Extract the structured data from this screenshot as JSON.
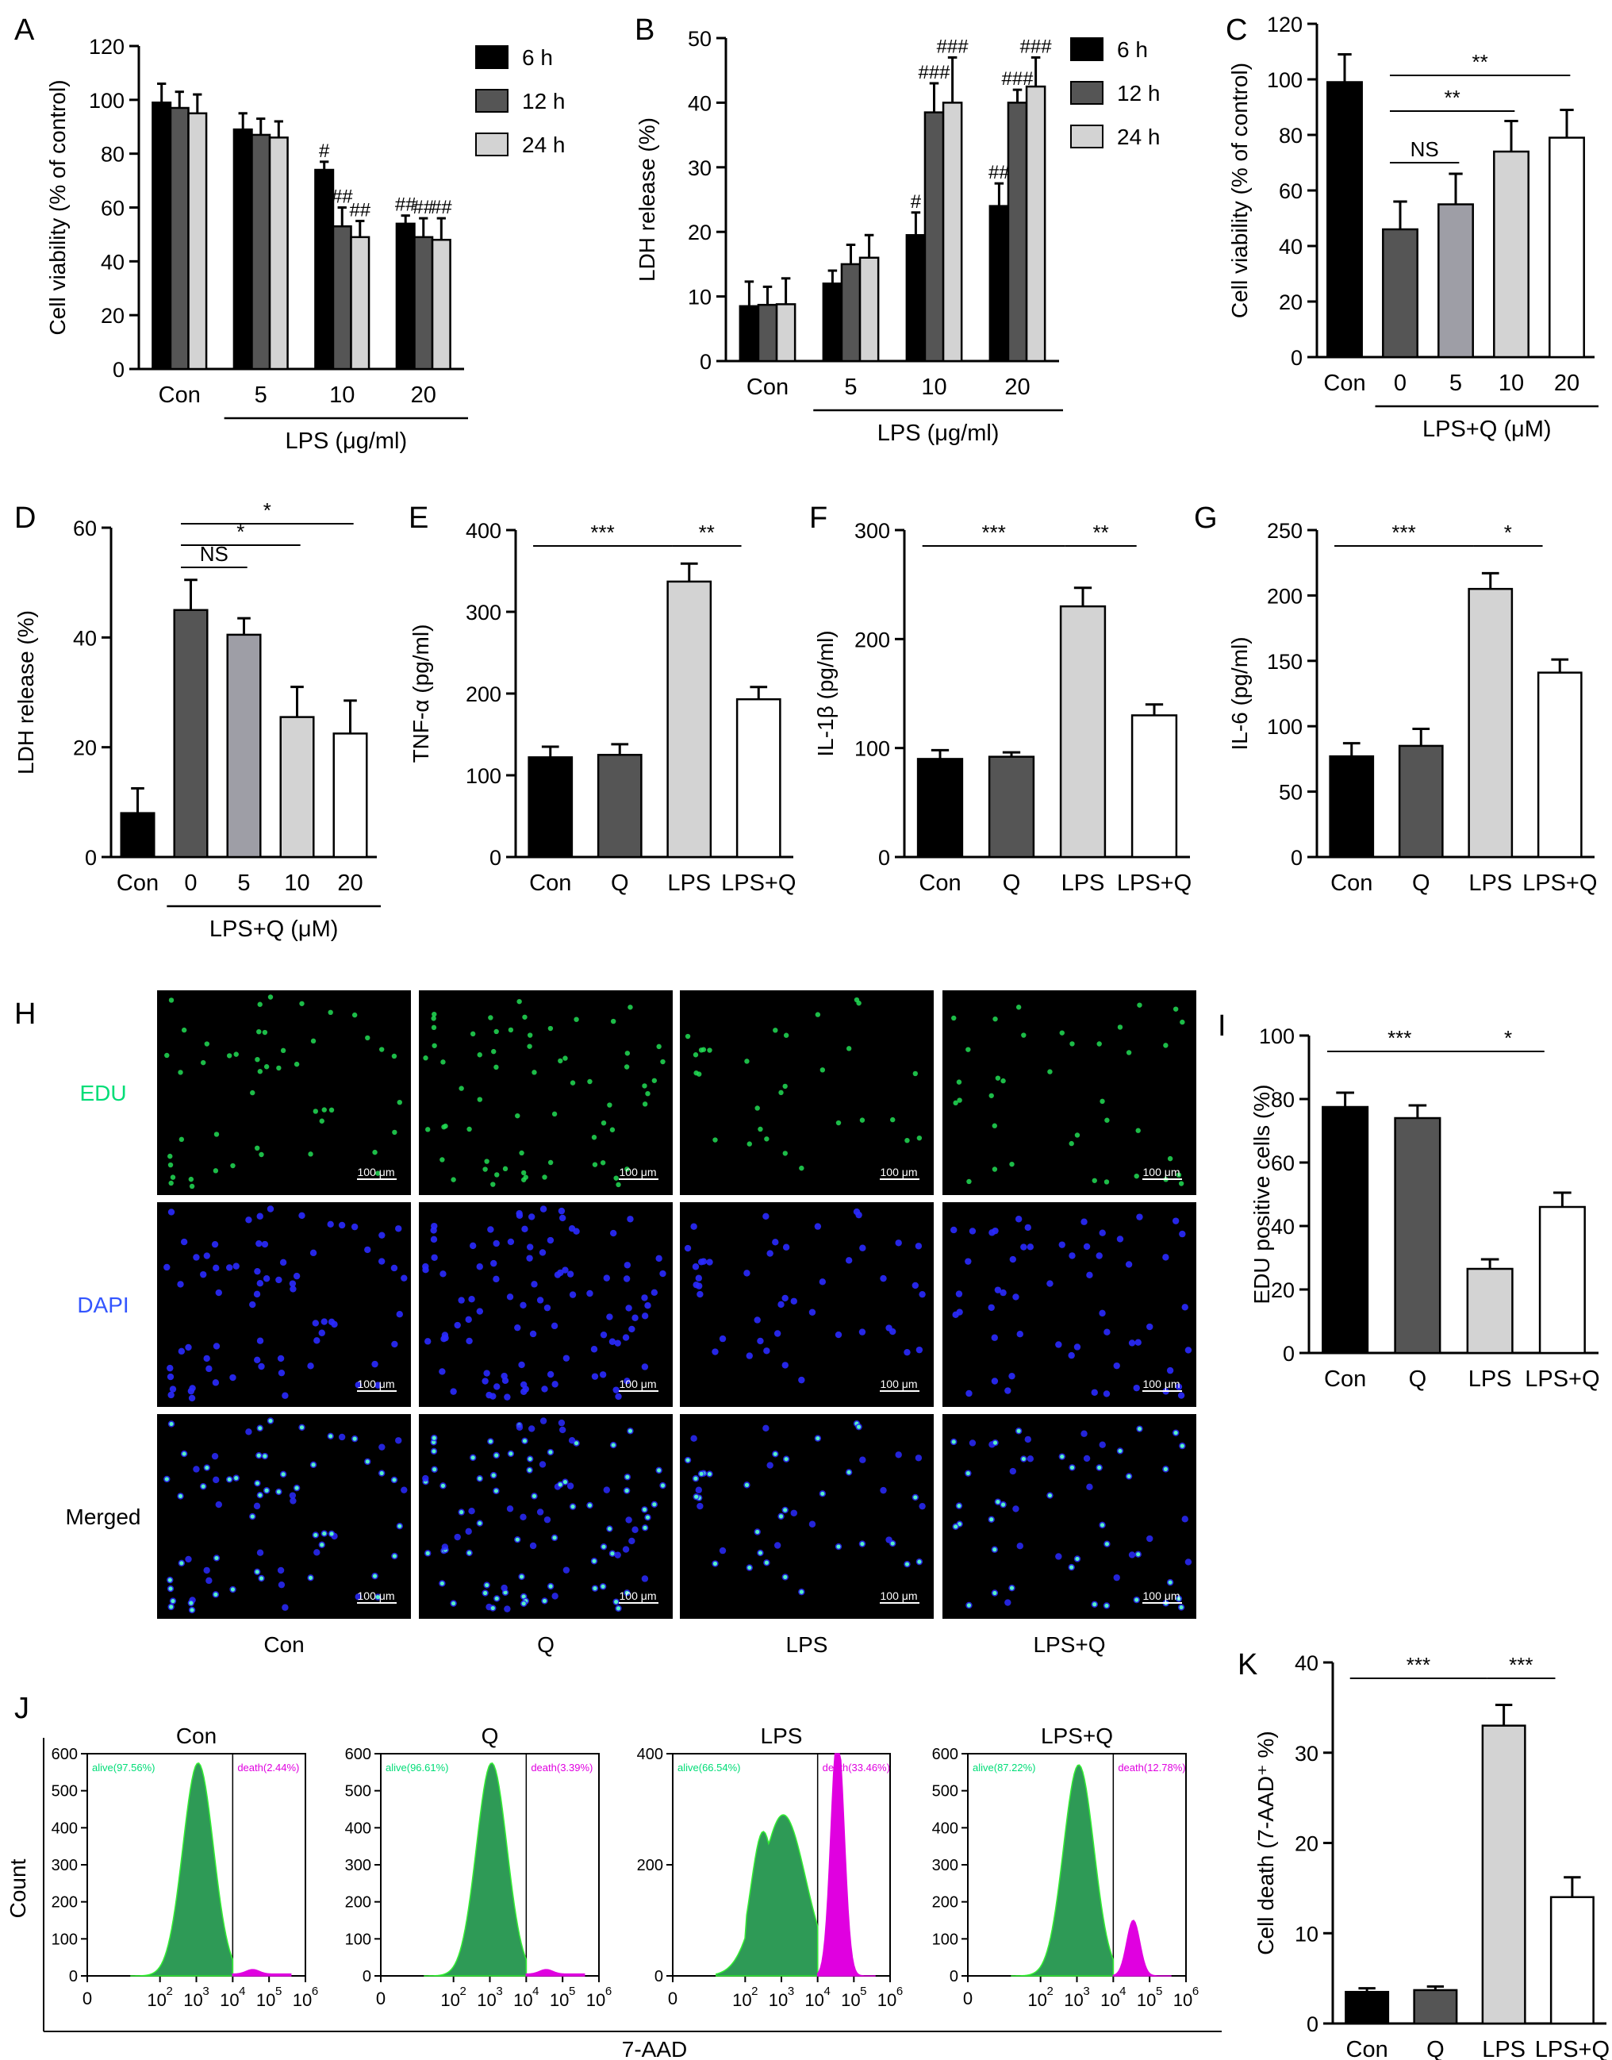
{
  "colors": {
    "black": "#000000",
    "dark_gray": "#555555",
    "mid_gray": "#9e9ea6",
    "light_gray": "#d3d3d3",
    "white": "#ffffff",
    "edu_green": "#22dd55",
    "dapi_blue": "#2a2aff",
    "merged_cyan": "#55f2c8",
    "flow_green": "#2e9a56",
    "flow_green_edge": "#33ee33",
    "flow_magenta": "#e000e0",
    "label_green": "#00dd77",
    "label_blue": "#3355ff"
  },
  "chart_data": [
    {
      "panel": "A",
      "type": "bar",
      "categories": [
        "Con",
        "5",
        "10",
        "20"
      ],
      "series": [
        {
          "name": "6 h",
          "values": [
            99,
            89,
            74,
            54
          ],
          "errors": [
            7,
            6,
            3,
            3
          ]
        },
        {
          "name": "12 h",
          "values": [
            97,
            87,
            53,
            49
          ],
          "errors": [
            6,
            6,
            7,
            7
          ]
        },
        {
          "name": "24 h",
          "values": [
            95,
            86,
            49,
            48
          ],
          "errors": [
            7,
            6,
            6,
            8
          ]
        }
      ],
      "sig": [
        [
          "",
          "",
          "",
          ""
        ],
        [
          "",
          "",
          "##",
          "##"
        ],
        [
          "",
          "",
          "##",
          "##"
        ]
      ],
      "sig_6h": [
        "",
        "",
        "#",
        "##"
      ],
      "ylabel": "Cell viability (% of control)",
      "ylim": [
        0,
        120
      ],
      "ticks": [
        0,
        20,
        40,
        60,
        80,
        100,
        120
      ],
      "group_label": "LPS (μg/ml)",
      "legend": [
        "6 h",
        "12 h",
        "24 h"
      ]
    },
    {
      "panel": "B",
      "type": "bar",
      "categories": [
        "Con",
        "5",
        "10",
        "20"
      ],
      "series": [
        {
          "name": "6 h",
          "values": [
            8.5,
            12,
            19.5,
            24
          ],
          "errors": [
            3.8,
            2,
            3.5,
            3.5
          ]
        },
        {
          "name": "12 h",
          "values": [
            8.7,
            15,
            38.5,
            40
          ],
          "errors": [
            2.8,
            3,
            4.5,
            2
          ]
        },
        {
          "name": "24 h",
          "values": [
            8.8,
            16,
            40,
            42.5
          ],
          "errors": [
            4,
            3.5,
            7,
            4.5
          ]
        }
      ],
      "sig": [
        [
          "",
          "",
          "#",
          "##"
        ],
        [
          "",
          "",
          "###",
          "###"
        ],
        [
          "",
          "",
          "###",
          "###"
        ]
      ],
      "ylabel": "LDH release (%)",
      "ylim": [
        0,
        50
      ],
      "ticks": [
        0,
        10,
        20,
        30,
        40,
        50
      ],
      "group_label": "LPS (μg/ml)",
      "legend": [
        "6 h",
        "12 h",
        "24 h"
      ]
    },
    {
      "panel": "C",
      "type": "bar",
      "categories": [
        "Con",
        "0",
        "5",
        "10",
        "20"
      ],
      "values": [
        99,
        46,
        55,
        74,
        79
      ],
      "errors": [
        10,
        10,
        11,
        11,
        10
      ],
      "ylabel": "Cell viability (% of  control)",
      "ylim": [
        0,
        120
      ],
      "ticks": [
        0,
        20,
        40,
        60,
        80,
        100,
        120
      ],
      "group_label": "LPS+Q (μM)",
      "brackets": [
        {
          "from": 1,
          "to": 2,
          "label": "NS"
        },
        {
          "from": 1,
          "to": 3,
          "label": "**"
        },
        {
          "from": 1,
          "to": 4,
          "label": "**"
        }
      ]
    },
    {
      "panel": "D",
      "type": "bar",
      "categories": [
        "Con",
        "0",
        "5",
        "10",
        "20"
      ],
      "values": [
        8,
        45,
        40.5,
        25.5,
        22.5
      ],
      "errors": [
        4.5,
        5.5,
        3,
        5.5,
        6
      ],
      "ylabel": "LDH release (%)",
      "ylim": [
        0,
        60
      ],
      "ticks": [
        0,
        20,
        40,
        60
      ],
      "group_label": "LPS+Q (μM)",
      "brackets": [
        {
          "from": 1,
          "to": 2,
          "label": "NS"
        },
        {
          "from": 1,
          "to": 3,
          "label": "*"
        },
        {
          "from": 1,
          "to": 4,
          "label": "*"
        }
      ]
    },
    {
      "panel": "E",
      "type": "bar",
      "categories": [
        "Con",
        "Q",
        "LPS",
        "LPS+Q"
      ],
      "values": [
        122,
        125,
        337,
        193
      ],
      "errors": [
        13,
        13,
        22,
        15
      ],
      "ylabel": "TNF-α (pg/ml)",
      "ylim": [
        0,
        400
      ],
      "ticks": [
        0,
        100,
        200,
        300,
        400
      ],
      "brackets": [
        {
          "from": 0,
          "to": 2,
          "label": "***"
        },
        {
          "from": 2,
          "to": 3,
          "label": "**"
        }
      ]
    },
    {
      "panel": "F",
      "type": "bar",
      "categories": [
        "Con",
        "Q",
        "LPS",
        "LPS+Q"
      ],
      "values": [
        90,
        92,
        230,
        130
      ],
      "errors": [
        8,
        4,
        17,
        10
      ],
      "ylabel": "IL-1β (pg/ml)",
      "ylim": [
        0,
        300
      ],
      "ticks": [
        0,
        100,
        200,
        300
      ],
      "brackets": [
        {
          "from": 0,
          "to": 2,
          "label": "***"
        },
        {
          "from": 2,
          "to": 3,
          "label": "**"
        }
      ]
    },
    {
      "panel": "G",
      "type": "bar",
      "categories": [
        "Con",
        "Q",
        "LPS",
        "LPS+Q"
      ],
      "values": [
        77,
        85,
        205,
        141
      ],
      "errors": [
        10,
        13,
        12,
        10
      ],
      "ylabel": "IL-6 (pg/ml)",
      "ylim": [
        0,
        250
      ],
      "ticks": [
        0,
        50,
        100,
        150,
        200,
        250
      ],
      "brackets": [
        {
          "from": 0,
          "to": 2,
          "label": "***"
        },
        {
          "from": 2,
          "to": 3,
          "label": "*"
        }
      ]
    },
    {
      "panel": "I",
      "type": "bar",
      "categories": [
        "Con",
        "Q",
        "LPS",
        "LPS+Q"
      ],
      "values": [
        77.5,
        74,
        26.5,
        46
      ],
      "errors": [
        4.5,
        4,
        3,
        4.5
      ],
      "ylabel": "EDU positive cells (%)",
      "ylim": [
        0,
        100
      ],
      "ticks": [
        0,
        20,
        40,
        60,
        80,
        100
      ],
      "brackets": [
        {
          "from": 0,
          "to": 2,
          "label": "***"
        },
        {
          "from": 2,
          "to": 3,
          "label": "*"
        }
      ]
    },
    {
      "panel": "K",
      "type": "bar",
      "categories": [
        "Con",
        "Q",
        "LPS",
        "LPS+Q"
      ],
      "values": [
        3.5,
        3.7,
        33,
        14
      ],
      "errors": [
        0.4,
        0.4,
        2.3,
        2.2
      ],
      "ylabel": "Cell death (7-AAD⁺ %)",
      "ylim": [
        0,
        40
      ],
      "ticks": [
        0,
        10,
        20,
        30,
        40
      ],
      "brackets": [
        {
          "from": 0,
          "to": 2,
          "label": "***"
        },
        {
          "from": 2,
          "to": 3,
          "label": "***"
        }
      ]
    }
  ],
  "microscopy": {
    "rows": [
      "EDU",
      "DAPI",
      "Merged"
    ],
    "cols": [
      "Con",
      "Q",
      "LPS",
      "LPS+Q"
    ],
    "scale_bar": "100 μm",
    "cell_counts": [
      70,
      95,
      45,
      55
    ]
  },
  "flow": {
    "title_labels": [
      "Con",
      "Q",
      "LPS",
      "LPS+Q"
    ],
    "alive_labels": [
      "alive(97.56%)",
      "alive(96.61%)",
      "alive(66.54%)",
      "alive(87.22%)"
    ],
    "death_labels": [
      "death(2.44%)",
      "death(3.39%)",
      "death(33.46%)",
      "death(12.78%)"
    ],
    "ymax": [
      600,
      600,
      400,
      600
    ],
    "yticks": [
      [
        0,
        100,
        200,
        300,
        400,
        500,
        600
      ],
      [
        0,
        100,
        200,
        300,
        400,
        500,
        600
      ],
      [
        0,
        200,
        400
      ],
      [
        0,
        100,
        200,
        300,
        400,
        500,
        600
      ]
    ],
    "xaxis_label": "7-AAD",
    "yaxis_label": "Count",
    "xtick_exponents": [
      "0",
      "2",
      "3",
      "4",
      "5",
      "6"
    ]
  },
  "panel_letters": [
    "A",
    "B",
    "C",
    "D",
    "E",
    "F",
    "G",
    "H",
    "I",
    "J",
    "K"
  ]
}
